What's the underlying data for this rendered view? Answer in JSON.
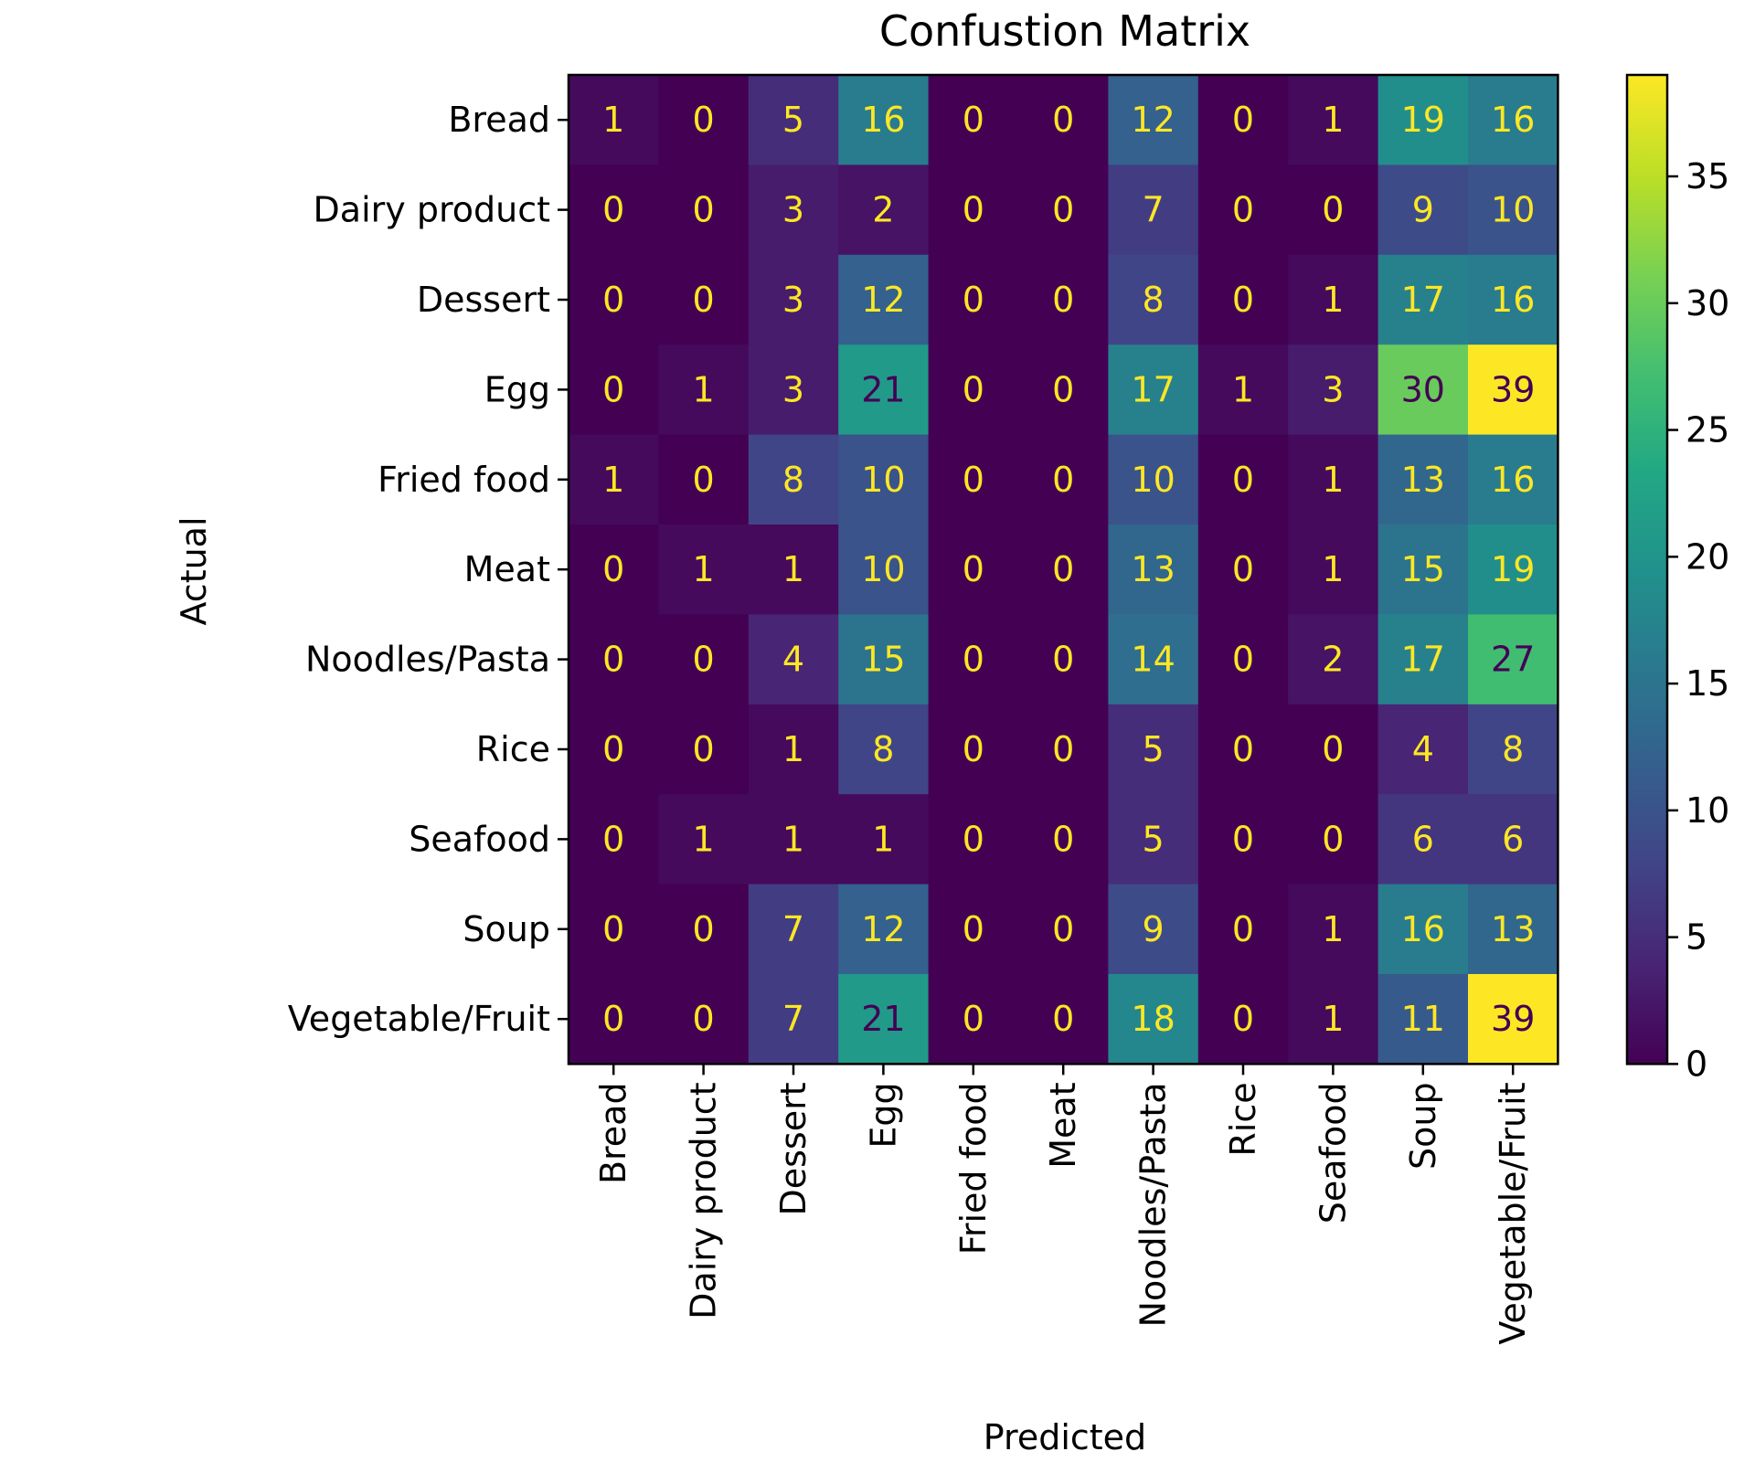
{
  "chart_data": {
    "type": "heatmap",
    "title": "Confustion Matrix",
    "xlabel": "Predicted",
    "ylabel": "Actual",
    "x_categories": [
      "Bread",
      "Dairy product",
      "Dessert",
      "Egg",
      "Fried food",
      "Meat",
      "Noodles/Pasta",
      "Rice",
      "Seafood",
      "Soup",
      "Vegetable/Fruit"
    ],
    "y_categories": [
      "Bread",
      "Dairy product",
      "Dessert",
      "Egg",
      "Fried food",
      "Meat",
      "Noodles/Pasta",
      "Rice",
      "Seafood",
      "Soup",
      "Vegetable/Fruit"
    ],
    "values": [
      [
        1,
        0,
        5,
        16,
        0,
        0,
        12,
        0,
        1,
        19,
        16
      ],
      [
        0,
        0,
        3,
        2,
        0,
        0,
        7,
        0,
        0,
        9,
        10
      ],
      [
        0,
        0,
        3,
        12,
        0,
        0,
        8,
        0,
        1,
        17,
        16
      ],
      [
        0,
        1,
        3,
        21,
        0,
        0,
        17,
        1,
        3,
        30,
        39
      ],
      [
        1,
        0,
        8,
        10,
        0,
        0,
        10,
        0,
        1,
        13,
        16
      ],
      [
        0,
        1,
        1,
        10,
        0,
        0,
        13,
        0,
        1,
        15,
        19
      ],
      [
        0,
        0,
        4,
        15,
        0,
        0,
        14,
        0,
        2,
        17,
        27
      ],
      [
        0,
        0,
        1,
        8,
        0,
        0,
        5,
        0,
        0,
        4,
        8
      ],
      [
        0,
        1,
        1,
        1,
        0,
        0,
        5,
        0,
        0,
        6,
        6
      ],
      [
        0,
        0,
        7,
        12,
        0,
        0,
        9,
        0,
        1,
        16,
        13
      ],
      [
        0,
        0,
        7,
        21,
        0,
        0,
        18,
        0,
        1,
        11,
        39
      ]
    ],
    "colormap": "viridis",
    "colorbar": {
      "range": [
        0,
        39
      ],
      "ticks": [
        0,
        5,
        10,
        15,
        20,
        25,
        30,
        35
      ]
    },
    "annotation_colors": {
      "light": "#fde725",
      "dark": "#440154"
    }
  }
}
